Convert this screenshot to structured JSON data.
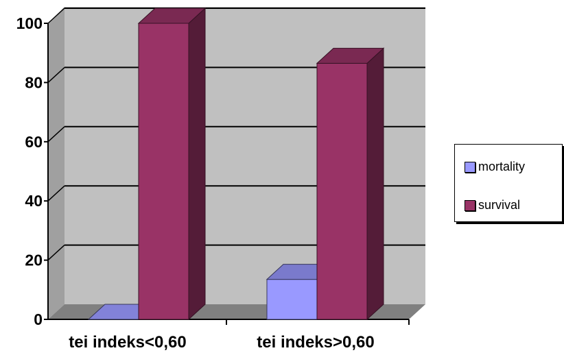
{
  "chart_data": {
    "type": "bar",
    "categories": [
      "tei indeks<0,60",
      "tei indeks>0,60"
    ],
    "series": [
      {
        "name": "mortality",
        "values": [
          0,
          13.5
        ],
        "color": "#9999ff"
      },
      {
        "name": "survival",
        "values": [
          100,
          86.5
        ],
        "color": "#993366"
      }
    ],
    "ylim": [
      0,
      100
    ],
    "yticks": [
      "0",
      "20",
      "40",
      "60",
      "80",
      "100"
    ],
    "ytick_values": [
      0,
      20,
      40,
      60,
      80,
      100
    ],
    "grid": true,
    "legend_position": "right",
    "title": "",
    "xlabel": "",
    "ylabel": ""
  }
}
